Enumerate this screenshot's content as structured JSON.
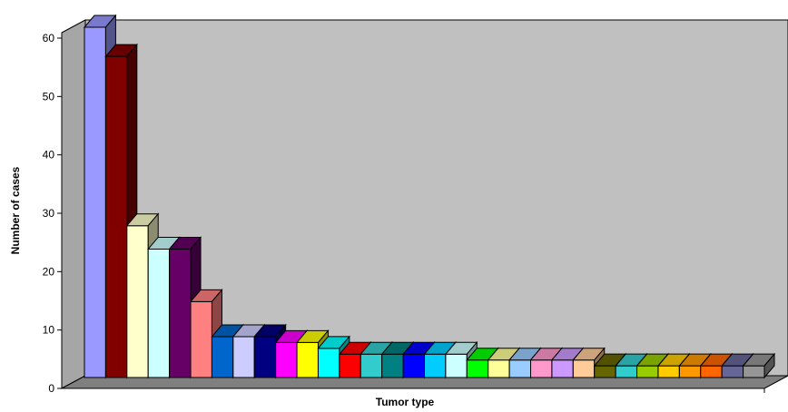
{
  "chart_data": {
    "type": "bar",
    "title": "",
    "xlabel": "Tumor type",
    "ylabel": "Number of cases",
    "ylim": [
      0,
      60
    ],
    "yticks": [
      0,
      10,
      20,
      30,
      40,
      50,
      60
    ],
    "grid": false,
    "legend": "none",
    "style": "3d",
    "wall_color": "#c0c0c0",
    "floor_color": "#808080",
    "values": [
      60,
      55,
      26,
      22,
      22,
      13,
      7,
      7,
      7,
      6,
      6,
      5,
      4,
      4,
      4,
      4,
      4,
      4,
      3,
      3,
      3,
      3,
      3,
      3,
      2,
      2,
      2,
      2,
      2,
      2,
      2,
      2
    ],
    "colors": [
      "#9999ff",
      "#800000",
      "#ffffcc",
      "#ccffff",
      "#660066",
      "#ff8080",
      "#0066cc",
      "#ccccff",
      "#000080",
      "#ff00ff",
      "#ffff00",
      "#00ffff",
      "#ff0000",
      "#33cccc",
      "#008080",
      "#0000ff",
      "#00ccff",
      "#ccffff",
      "#00ff00",
      "#ffff99",
      "#99ccff",
      "#ff99cc",
      "#cc99ff",
      "#ffcc99",
      "#666600",
      "#33cccc",
      "#99cc00",
      "#ffcc00",
      "#ff9900",
      "#ff6600",
      "#666699",
      "#969696"
    ]
  }
}
